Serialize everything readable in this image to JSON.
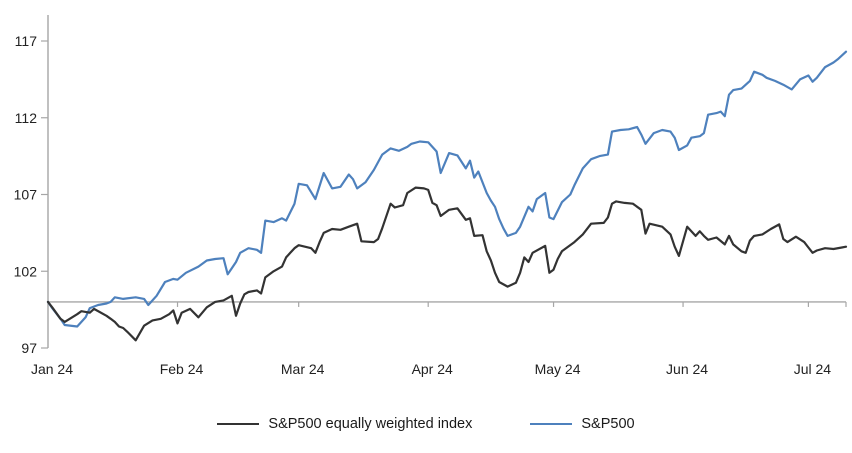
{
  "page": {
    "background": "#ffffff"
  },
  "legend": {
    "items": [
      {
        "label": "S&P500 equally weighted index",
        "color": "#333333"
      },
      {
        "label": "S&P500",
        "color": "#4E81BD"
      }
    ]
  },
  "chart_data": {
    "type": "line",
    "title": "",
    "grid": "off",
    "legend_position": "bottom-center",
    "axis_color": "#A6A6A6",
    "text_color": "#222222",
    "x_axis": {
      "categories": [
        "Jan 24",
        "Feb 24",
        "Mar 24",
        "Apr 24",
        "May 24",
        "Jun 24",
        "Jul 24"
      ],
      "tick_days": [
        0,
        31,
        60,
        91,
        121,
        152,
        182
      ],
      "max_day": 191,
      "baseline_value": 100
    },
    "y_axis": {
      "ticks": [
        97,
        102,
        107,
        112,
        117
      ],
      "min": 97,
      "max": 117
    },
    "series": [
      {
        "name": "S&P500 equally weighted index",
        "id": "sp500-equal-weight",
        "color": "#333333",
        "points": [
          [
            0,
            100.0
          ],
          [
            1,
            99.65
          ],
          [
            3,
            98.9
          ],
          [
            4,
            98.7
          ],
          [
            7,
            99.2
          ],
          [
            8,
            99.4
          ],
          [
            10,
            99.3
          ],
          [
            11,
            99.55
          ],
          [
            14,
            99.1
          ],
          [
            15,
            98.9
          ],
          [
            16,
            98.7
          ],
          [
            17,
            98.4
          ],
          [
            18,
            98.3
          ],
          [
            19,
            98.05
          ],
          [
            21,
            97.5
          ],
          [
            23,
            98.45
          ],
          [
            25,
            98.8
          ],
          [
            27,
            98.9
          ],
          [
            29,
            99.2
          ],
          [
            30,
            99.45
          ],
          [
            31,
            98.6
          ],
          [
            32,
            99.3
          ],
          [
            34,
            99.55
          ],
          [
            36,
            99.0
          ],
          [
            38,
            99.65
          ],
          [
            40,
            100.0
          ],
          [
            42,
            100.1
          ],
          [
            44,
            100.4
          ],
          [
            45,
            99.1
          ],
          [
            46,
            99.9
          ],
          [
            47,
            100.5
          ],
          [
            48,
            100.65
          ],
          [
            50,
            100.75
          ],
          [
            51,
            100.55
          ],
          [
            52,
            101.6
          ],
          [
            54,
            102.0
          ],
          [
            56,
            102.3
          ],
          [
            57,
            102.9
          ],
          [
            58,
            103.2
          ],
          [
            59,
            103.5
          ],
          [
            60,
            103.7
          ],
          [
            63,
            103.5
          ],
          [
            64,
            103.2
          ],
          [
            65,
            103.9
          ],
          [
            66,
            104.5
          ],
          [
            68,
            104.75
          ],
          [
            70,
            104.7
          ],
          [
            72,
            104.9
          ],
          [
            74,
            105.1
          ],
          [
            75,
            103.95
          ],
          [
            78,
            103.9
          ],
          [
            79,
            104.1
          ],
          [
            80,
            104.8
          ],
          [
            82,
            106.4
          ],
          [
            83,
            106.15
          ],
          [
            85,
            106.3
          ],
          [
            86,
            107.1
          ],
          [
            88,
            107.45
          ],
          [
            90,
            107.4
          ],
          [
            91,
            107.3
          ],
          [
            92,
            106.45
          ],
          [
            93,
            106.3
          ],
          [
            94,
            105.6
          ],
          [
            96,
            106.0
          ],
          [
            98,
            106.1
          ],
          [
            100,
            105.35
          ],
          [
            101,
            105.45
          ],
          [
            102,
            104.3
          ],
          [
            104,
            104.35
          ],
          [
            105,
            103.3
          ],
          [
            106,
            102.7
          ],
          [
            107,
            101.9
          ],
          [
            108,
            101.3
          ],
          [
            110,
            101.0
          ],
          [
            112,
            101.25
          ],
          [
            113,
            101.9
          ],
          [
            114,
            102.9
          ],
          [
            115,
            102.6
          ],
          [
            116,
            103.2
          ],
          [
            119,
            103.65
          ],
          [
            120,
            101.9
          ],
          [
            121,
            102.1
          ],
          [
            122,
            102.8
          ],
          [
            123,
            103.3
          ],
          [
            126,
            103.9
          ],
          [
            128,
            104.4
          ],
          [
            130,
            105.1
          ],
          [
            133,
            105.15
          ],
          [
            134,
            105.5
          ],
          [
            135,
            106.4
          ],
          [
            136,
            106.55
          ],
          [
            138,
            106.45
          ],
          [
            140,
            106.4
          ],
          [
            142,
            106.0
          ],
          [
            143,
            104.45
          ],
          [
            144,
            105.1
          ],
          [
            147,
            104.9
          ],
          [
            149,
            104.4
          ],
          [
            150,
            103.6
          ],
          [
            151,
            103.0
          ],
          [
            153,
            104.9
          ],
          [
            155,
            104.3
          ],
          [
            156,
            104.6
          ],
          [
            157,
            104.3
          ],
          [
            158,
            104.05
          ],
          [
            160,
            104.2
          ],
          [
            162,
            103.75
          ],
          [
            163,
            104.3
          ],
          [
            164,
            103.75
          ],
          [
            166,
            103.3
          ],
          [
            167,
            103.2
          ],
          [
            168,
            104.0
          ],
          [
            169,
            104.3
          ],
          [
            171,
            104.4
          ],
          [
            173,
            104.75
          ],
          [
            175,
            105.05
          ],
          [
            176,
            104.1
          ],
          [
            177,
            103.9
          ],
          [
            179,
            104.25
          ],
          [
            181,
            103.9
          ],
          [
            182,
            103.55
          ],
          [
            183,
            103.2
          ],
          [
            184,
            103.35
          ],
          [
            186,
            103.5
          ],
          [
            188,
            103.45
          ],
          [
            190,
            103.55
          ],
          [
            191,
            103.6
          ]
        ]
      },
      {
        "name": "S&P500",
        "id": "sp500",
        "color": "#4E81BD",
        "points": [
          [
            0,
            100.0
          ],
          [
            1,
            99.6
          ],
          [
            3,
            98.9
          ],
          [
            4,
            98.5
          ],
          [
            7,
            98.4
          ],
          [
            9,
            99.0
          ],
          [
            10,
            99.6
          ],
          [
            12,
            99.8
          ],
          [
            14,
            99.9
          ],
          [
            15,
            100.0
          ],
          [
            16,
            100.3
          ],
          [
            18,
            100.2
          ],
          [
            21,
            100.3
          ],
          [
            23,
            100.2
          ],
          [
            24,
            99.8
          ],
          [
            26,
            100.4
          ],
          [
            28,
            101.3
          ],
          [
            30,
            101.5
          ],
          [
            31,
            101.45
          ],
          [
            33,
            101.9
          ],
          [
            36,
            102.3
          ],
          [
            38,
            102.7
          ],
          [
            40,
            102.8
          ],
          [
            42,
            102.85
          ],
          [
            43,
            101.8
          ],
          [
            44,
            102.2
          ],
          [
            45,
            102.6
          ],
          [
            46,
            103.2
          ],
          [
            48,
            103.5
          ],
          [
            50,
            103.4
          ],
          [
            51,
            103.2
          ],
          [
            52,
            105.3
          ],
          [
            54,
            105.2
          ],
          [
            56,
            105.45
          ],
          [
            57,
            105.3
          ],
          [
            59,
            106.4
          ],
          [
            60,
            107.7
          ],
          [
            62,
            107.6
          ],
          [
            64,
            106.7
          ],
          [
            66,
            108.4
          ],
          [
            68,
            107.4
          ],
          [
            70,
            107.5
          ],
          [
            72,
            108.3
          ],
          [
            73,
            108.0
          ],
          [
            74,
            107.4
          ],
          [
            76,
            107.8
          ],
          [
            78,
            108.6
          ],
          [
            80,
            109.6
          ],
          [
            82,
            110.0
          ],
          [
            84,
            109.85
          ],
          [
            86,
            110.1
          ],
          [
            87,
            110.3
          ],
          [
            89,
            110.45
          ],
          [
            91,
            110.4
          ],
          [
            93,
            109.8
          ],
          [
            94,
            108.4
          ],
          [
            96,
            109.7
          ],
          [
            98,
            109.55
          ],
          [
            100,
            108.7
          ],
          [
            101,
            109.2
          ],
          [
            102,
            108.1
          ],
          [
            103,
            108.5
          ],
          [
            105,
            107.1
          ],
          [
            106,
            106.6
          ],
          [
            107,
            106.2
          ],
          [
            108,
            105.4
          ],
          [
            109,
            104.8
          ],
          [
            110,
            104.3
          ],
          [
            112,
            104.5
          ],
          [
            113,
            104.9
          ],
          [
            115,
            106.2
          ],
          [
            116,
            105.9
          ],
          [
            117,
            106.7
          ],
          [
            119,
            107.1
          ],
          [
            120,
            105.5
          ],
          [
            121,
            105.4
          ],
          [
            123,
            106.5
          ],
          [
            125,
            107.0
          ],
          [
            126,
            107.6
          ],
          [
            128,
            108.7
          ],
          [
            130,
            109.3
          ],
          [
            132,
            109.5
          ],
          [
            134,
            109.6
          ],
          [
            135,
            111.1
          ],
          [
            137,
            111.2
          ],
          [
            139,
            111.25
          ],
          [
            141,
            111.4
          ],
          [
            142,
            110.9
          ],
          [
            143,
            110.3
          ],
          [
            145,
            111.0
          ],
          [
            147,
            111.2
          ],
          [
            149,
            111.1
          ],
          [
            150,
            110.7
          ],
          [
            151,
            109.9
          ],
          [
            153,
            110.2
          ],
          [
            154,
            110.7
          ],
          [
            156,
            110.8
          ],
          [
            157,
            111.0
          ],
          [
            158,
            112.2
          ],
          [
            160,
            112.3
          ],
          [
            161,
            112.4
          ],
          [
            162,
            112.1
          ],
          [
            163,
            113.5
          ],
          [
            164,
            113.8
          ],
          [
            166,
            113.9
          ],
          [
            168,
            114.4
          ],
          [
            169,
            115.0
          ],
          [
            171,
            114.8
          ],
          [
            172,
            114.6
          ],
          [
            174,
            114.4
          ],
          [
            176,
            114.15
          ],
          [
            178,
            113.85
          ],
          [
            180,
            114.5
          ],
          [
            182,
            114.75
          ],
          [
            183,
            114.35
          ],
          [
            184,
            114.6
          ],
          [
            186,
            115.3
          ],
          [
            188,
            115.6
          ],
          [
            189,
            115.8
          ],
          [
            191,
            116.3
          ]
        ]
      }
    ]
  }
}
